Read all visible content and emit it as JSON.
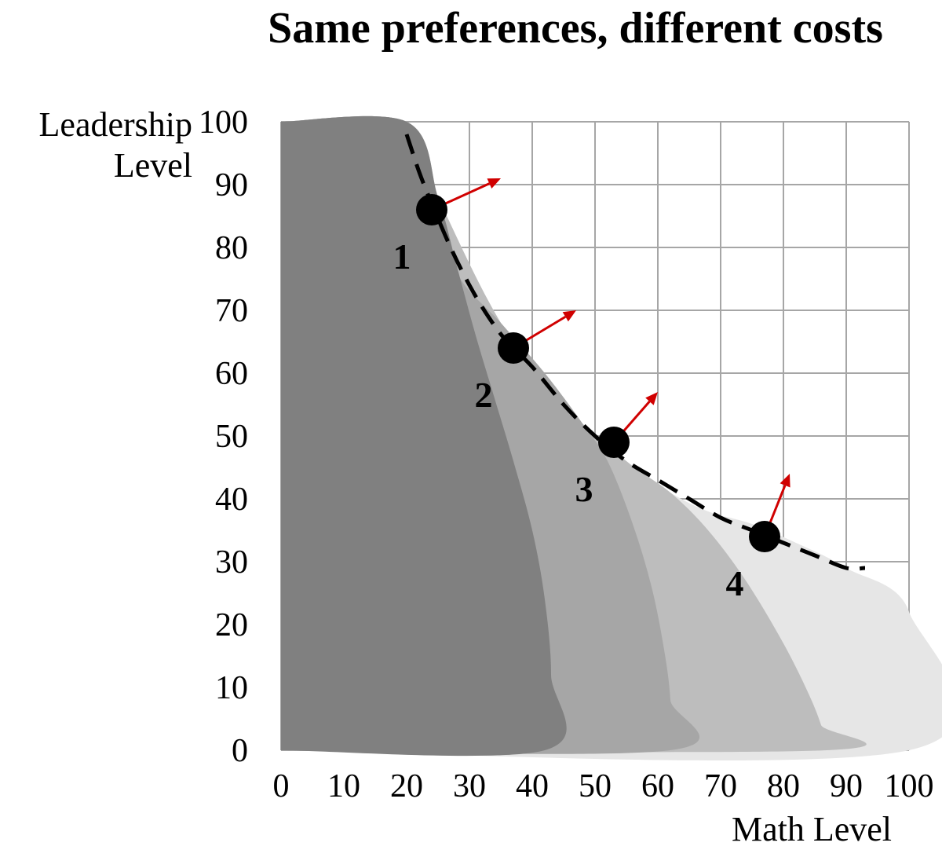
{
  "chart_data": {
    "type": "line",
    "title": "Same preferences, different costs",
    "xlabel": "Math Level",
    "ylabel_lines": [
      "Leadership",
      "Level"
    ],
    "xlim": [
      0,
      100
    ],
    "ylim": [
      0,
      100
    ],
    "x_ticks": [
      0,
      10,
      20,
      30,
      40,
      50,
      60,
      70,
      80,
      90,
      100
    ],
    "y_ticks": [
      0,
      10,
      20,
      30,
      40,
      50,
      60,
      70,
      80,
      90,
      100
    ],
    "grid": true,
    "regions": [
      {
        "name": "Region 4 feasible set",
        "color": "#e6e6e6",
        "boundary": [
          [
            0,
            100
          ],
          [
            20,
            100
          ],
          [
            25,
            88
          ],
          [
            35,
            68
          ],
          [
            45,
            55
          ],
          [
            55,
            46
          ],
          [
            62,
            41
          ],
          [
            68,
            38
          ],
          [
            75,
            36
          ],
          [
            82,
            33
          ],
          [
            90,
            29
          ],
          [
            100,
            22
          ],
          [
            100,
            0
          ],
          [
            0,
            0
          ]
        ]
      },
      {
        "name": "Region 3 feasible set",
        "color": "#bdbdbd",
        "boundary": [
          [
            0,
            100
          ],
          [
            20,
            100
          ],
          [
            25,
            88
          ],
          [
            35,
            68
          ],
          [
            45,
            55
          ],
          [
            55,
            46
          ],
          [
            62,
            41
          ],
          [
            68,
            35
          ],
          [
            74,
            27
          ],
          [
            80,
            17
          ],
          [
            84,
            9
          ],
          [
            86,
            4
          ],
          [
            87,
            0
          ],
          [
            0,
            0
          ]
        ]
      },
      {
        "name": "Region 2 feasible set",
        "color": "#a6a6a6",
        "boundary": [
          [
            0,
            100
          ],
          [
            20,
            100
          ],
          [
            25,
            88
          ],
          [
            28,
            76
          ],
          [
            35,
            68
          ],
          [
            42,
            60
          ],
          [
            48,
            52
          ],
          [
            52,
            46
          ],
          [
            56,
            36
          ],
          [
            59,
            26
          ],
          [
            61,
            16
          ],
          [
            62,
            8
          ],
          [
            62,
            0
          ],
          [
            0,
            0
          ]
        ]
      },
      {
        "name": "Region 1 feasible set",
        "color": "#808080",
        "boundary": [
          [
            0,
            100
          ],
          [
            20,
            100
          ],
          [
            25,
            88
          ],
          [
            28,
            77
          ],
          [
            31,
            66
          ],
          [
            34,
            56
          ],
          [
            37,
            46
          ],
          [
            40,
            35
          ],
          [
            42,
            24
          ],
          [
            43,
            12
          ],
          [
            42,
            0
          ],
          [
            0,
            0
          ]
        ]
      }
    ],
    "indifference_curve": {
      "style": "dashed",
      "points": [
        [
          20,
          98
        ],
        [
          22,
          92
        ],
        [
          24,
          87
        ],
        [
          27,
          80
        ],
        [
          30,
          74
        ],
        [
          33,
          69
        ],
        [
          36,
          65
        ],
        [
          40,
          61
        ],
        [
          45,
          55
        ],
        [
          50,
          50
        ],
        [
          55,
          46
        ],
        [
          60,
          43
        ],
        [
          65,
          40
        ],
        [
          70,
          37
        ],
        [
          75,
          35
        ],
        [
          80,
          33
        ],
        [
          85,
          31
        ],
        [
          90,
          29
        ],
        [
          93,
          29
        ]
      ]
    },
    "points": [
      {
        "label": "1",
        "x": 24,
        "y": 86,
        "arrow_to": [
          35,
          91
        ]
      },
      {
        "label": "2",
        "x": 37,
        "y": 64,
        "arrow_to": [
          47,
          70
        ]
      },
      {
        "label": "3",
        "x": 53,
        "y": 49,
        "arrow_to": [
          60,
          57
        ]
      },
      {
        "label": "4",
        "x": 77,
        "y": 34,
        "arrow_to": [
          81,
          44
        ]
      }
    ],
    "colors": {
      "grid": "#a6a6a6",
      "arrow": "#d00000",
      "point": "#000000",
      "curve": "#000000"
    }
  }
}
